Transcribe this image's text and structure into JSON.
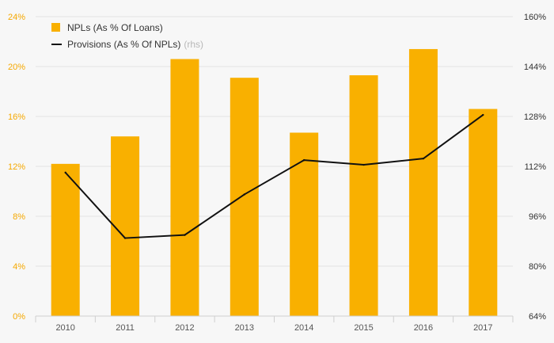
{
  "chart_data": {
    "type": "bar",
    "categories": [
      "2010",
      "2011",
      "2012",
      "2013",
      "2014",
      "2015",
      "2016",
      "2017"
    ],
    "series": [
      {
        "name": "NPLs (As % Of Loans)",
        "type": "bar",
        "axis": "left",
        "color": "#f9b000",
        "values": [
          12.2,
          14.4,
          20.6,
          19.1,
          14.7,
          19.3,
          21.4,
          16.6
        ]
      },
      {
        "name": "Provisions (As % Of NPLs)",
        "name_note": "(rhs)",
        "type": "line",
        "axis": "right",
        "color": "#111111",
        "values": [
          110,
          89,
          90,
          103,
          114,
          112.5,
          114.5,
          128.5
        ]
      }
    ],
    "y_left": {
      "lim": [
        0,
        24
      ],
      "ticks": [
        "0%",
        "4%",
        "8%",
        "12%",
        "16%",
        "20%",
        "24%"
      ],
      "tick_color": "#f5a800"
    },
    "y_right": {
      "lim": [
        64,
        160
      ],
      "ticks": [
        "64%",
        "80%",
        "96%",
        "112%",
        "128%",
        "144%",
        "160%"
      ]
    },
    "grid": true,
    "legend_position": "top-left",
    "title": "",
    "xlabel": "",
    "ylabel": ""
  }
}
